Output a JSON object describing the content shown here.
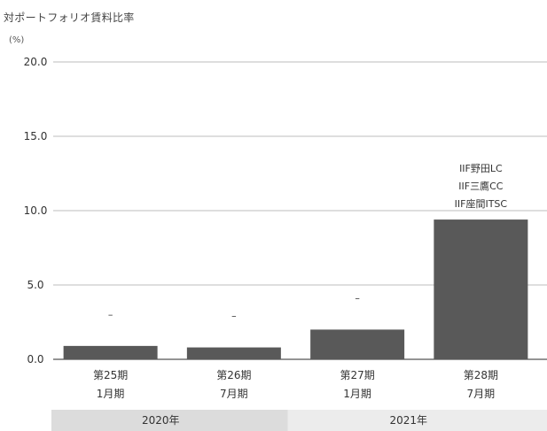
{
  "chart_data": {
    "type": "bar",
    "title": "対ポートフォリオ賃料比率",
    "unit": "(%)",
    "ylim": [
      0,
      20
    ],
    "yticks": [
      "0.0",
      "5.0",
      "10.0",
      "15.0",
      "20.0"
    ],
    "grid": true,
    "bar_color": "#595959",
    "categories": [
      {
        "label": [
          "第25期",
          "1月期"
        ],
        "value": 0.9,
        "annotation": [
          "–"
        ]
      },
      {
        "label": [
          "第26期",
          "7月期"
        ],
        "value": 0.8,
        "annotation": [
          "–"
        ]
      },
      {
        "label": [
          "第27期",
          "1月期"
        ],
        "value": 2.0,
        "annotation": [
          "–"
        ]
      },
      {
        "label": [
          "第28期",
          "7月期"
        ],
        "value": 9.4,
        "annotation": [
          "IIF野田LC",
          "IIF三鷹CC",
          "IIF座間ITSC"
        ]
      }
    ],
    "year_groups": [
      {
        "label": "2020年",
        "span": [
          0,
          1
        ],
        "color": "#dcdcdc"
      },
      {
        "label": "2021年",
        "span": [
          2,
          3
        ],
        "color": "#ececec"
      }
    ]
  }
}
